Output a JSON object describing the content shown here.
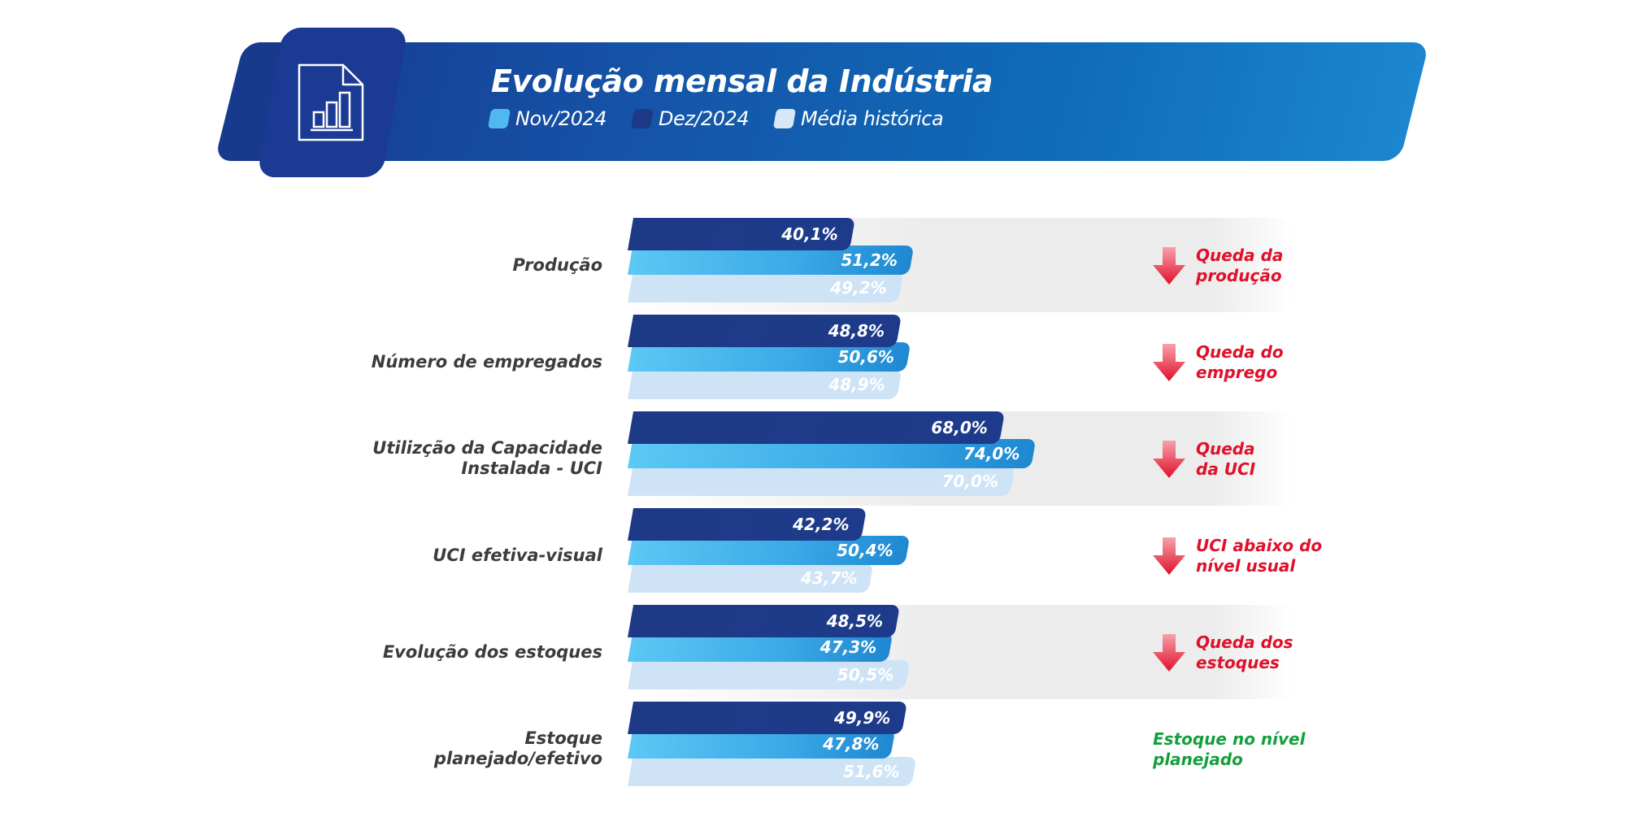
{
  "header": {
    "title": "Evolução mensal da Indústria",
    "icon": "chart-document-icon"
  },
  "legend": [
    {
      "label": "Nov/2024",
      "color": "#4fb8ee"
    },
    {
      "label": "Dez/2024",
      "color": "#1e3a86"
    },
    {
      "label": "Média histórica",
      "color": "#d6e7f7"
    }
  ],
  "colors": {
    "dez": "#1e3a86",
    "nov": "#3aa9e6",
    "hist": "#cfe3f6",
    "down": "#e0102a",
    "ok": "#13a03c"
  },
  "chart_data": {
    "type": "bar",
    "orientation": "horizontal",
    "title": "Evolução mensal da Indústria",
    "categories": [
      "Produção",
      "Número de empregados",
      "Utilizção da Capacidade Instalada - UCI",
      "UCI efetiva-visual",
      "Evolução dos estoques",
      "Estoque planejado/efetivo"
    ],
    "series": [
      {
        "name": "Dez/2024",
        "values": [
          40.1,
          48.8,
          68.0,
          42.2,
          48.5,
          49.9
        ],
        "labels": [
          "40,1%",
          "48,8%",
          "68,0%",
          "42,2%",
          "48,5%",
          "49,9%"
        ]
      },
      {
        "name": "Nov/2024",
        "values": [
          51.2,
          50.6,
          74.0,
          50.4,
          47.3,
          47.8
        ],
        "labels": [
          "51,2%",
          "50,6%",
          "74,0%",
          "50,4%",
          "47,3%",
          "47,8%"
        ]
      },
      {
        "name": "Média histórica",
        "values": [
          49.2,
          48.9,
          70.0,
          43.7,
          50.5,
          51.6
        ],
        "labels": [
          "49,2%",
          "48,9%",
          "70,0%",
          "43,7%",
          "50,5%",
          "51,6%"
        ]
      }
    ],
    "category_labels": [
      [
        "Produção"
      ],
      [
        "Número de empregados"
      ],
      [
        "Utilizção da Capacidade",
        "Instalada - UCI"
      ],
      [
        "UCI efetiva-visual"
      ],
      [
        "Evolução dos estoques"
      ],
      [
        "Estoque",
        "planejado/efetivo"
      ]
    ],
    "annotations": [
      {
        "trend": "down",
        "lines": [
          "Queda da",
          "produção"
        ]
      },
      {
        "trend": "down",
        "lines": [
          "Queda do",
          "emprego"
        ]
      },
      {
        "trend": "down",
        "lines": [
          "Queda",
          "da UCI"
        ]
      },
      {
        "trend": "down",
        "lines": [
          "UCI abaixo do",
          "nível usual"
        ]
      },
      {
        "trend": "down",
        "lines": [
          "Queda dos",
          "estoques"
        ]
      },
      {
        "trend": "ok",
        "lines": [
          "Estoque no nível",
          "planejado"
        ]
      }
    ],
    "shaded_rows": [
      true,
      false,
      true,
      false,
      true,
      false
    ],
    "xlim": [
      0,
      100
    ],
    "unit": "%"
  }
}
